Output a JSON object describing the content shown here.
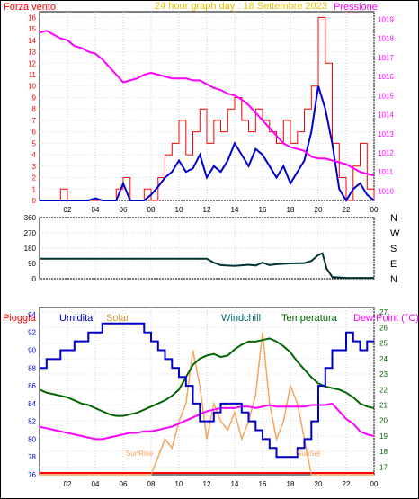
{
  "header": {
    "left_label": "Forza vento",
    "title": "24 hour graph day : 18 Settembre 2023",
    "right_label": "Pressione"
  },
  "colors": {
    "wind": "#ff0000",
    "wind_avg": "#0000cc",
    "pressure": "#ff00ff",
    "direction": "#003333",
    "rain": "#ff0000",
    "humidity": "#0000cc",
    "solar": "#f4a460",
    "windchill": "#006600",
    "temperature": "#006600",
    "dewpoint": "#ff00ff",
    "axis_left": "#ff0000",
    "axis_right": "#ff00ff",
    "title": "#e6c200"
  },
  "hour_ticks": [
    "02",
    "04",
    "06",
    "08",
    "10",
    "12",
    "14",
    "16",
    "18",
    "20",
    "22",
    "00"
  ],
  "chart_data": [
    {
      "type": "line",
      "name": "wind-pressure",
      "x_range": [
        0,
        24
      ],
      "left_axis": {
        "label": "Forza vento",
        "ylim": [
          0,
          16.5
        ],
        "ticks": [
          0,
          1,
          2,
          3,
          4,
          5,
          6,
          7,
          8,
          9,
          10,
          11,
          12,
          13,
          14,
          15,
          16
        ]
      },
      "right_axis": {
        "label": "Pressione",
        "ylim": [
          1009.5,
          1019.4
        ],
        "ticks": [
          1010,
          1011,
          1012,
          1013,
          1014,
          1015,
          1016,
          1017,
          1018,
          1019
        ]
      },
      "series": [
        {
          "axis": "right",
          "x": [
            0,
            0.5,
            1,
            1.5,
            2,
            2.5,
            3,
            3.5,
            4,
            4.5,
            5,
            5.5,
            6,
            6.5,
            7,
            7.5,
            8,
            8.5,
            9,
            9.5,
            10,
            10.5,
            11,
            11.5,
            12,
            12.5,
            13,
            13.5,
            14,
            14.5,
            15,
            15.5,
            16,
            16.5,
            17,
            17.5,
            18,
            18.5,
            19,
            19.5,
            20,
            20.5,
            21,
            21.5,
            22,
            22.5,
            23,
            23.5,
            24
          ],
          "y": [
            1018.3,
            1018.4,
            1018.2,
            1018.0,
            1017.9,
            1017.6,
            1017.5,
            1017.3,
            1017.2,
            1016.9,
            1016.5,
            1016.1,
            1015.7,
            1015.8,
            1015.9,
            1016.1,
            1016.2,
            1016.1,
            1016.0,
            1015.9,
            1015.9,
            1015.9,
            1015.8,
            1015.8,
            1015.6,
            1015.4,
            1015.3,
            1015.1,
            1015.0,
            1014.8,
            1014.5,
            1014.1,
            1013.7,
            1013.3,
            1012.9,
            1012.5,
            1012.3,
            1012.2,
            1012.1,
            1011.8,
            1011.7,
            1011.7,
            1011.6,
            1011.5,
            1011.4,
            1011.2,
            1011.0,
            1010.9,
            1010.8
          ]
        },
        {
          "axis": "left",
          "x": [
            0,
            0.5,
            1,
            1.5,
            2,
            2.5,
            3,
            3.5,
            4,
            4.5,
            5,
            5.5,
            6,
            6.5,
            7,
            7.5,
            8,
            8.5,
            9,
            9.5,
            10,
            10.5,
            11,
            11.5,
            12,
            12.5,
            13,
            13.5,
            14,
            14.5,
            15,
            15.5,
            16,
            16.5,
            17,
            17.5,
            18,
            18.5,
            19,
            19.5,
            20,
            20.5,
            21,
            21.5,
            22,
            22.5,
            23,
            23.5,
            24
          ],
          "y": [
            0,
            0,
            0,
            1,
            0,
            0,
            0,
            0,
            0,
            0,
            0,
            1,
            2,
            0,
            0,
            1,
            0,
            2,
            4,
            5,
            7,
            4,
            6,
            8,
            5,
            7,
            6,
            8,
            9,
            7,
            6,
            8,
            7,
            6,
            5,
            7,
            5,
            6,
            8,
            10,
            16,
            12,
            5,
            2,
            0,
            3,
            5,
            1,
            0
          ]
        },
        {
          "axis": "left",
          "x": [
            0,
            0.5,
            1,
            1.5,
            2,
            2.5,
            3,
            3.5,
            4,
            4.5,
            5,
            5.5,
            6,
            6.5,
            7,
            7.5,
            8,
            8.5,
            9,
            9.5,
            10,
            10.5,
            11,
            11.5,
            12,
            12.5,
            13,
            13.5,
            14,
            14.5,
            15,
            15.5,
            16,
            16.5,
            17,
            17.5,
            18,
            18.5,
            19,
            19.5,
            20,
            20.5,
            21,
            21.5,
            22,
            22.5,
            23,
            23.5,
            24
          ],
          "y": [
            0,
            0,
            0,
            0,
            0,
            0,
            0,
            0,
            0.2,
            0,
            0,
            0,
            1.5,
            0,
            0,
            0,
            0.5,
            1.2,
            2.0,
            2.5,
            3.5,
            2.5,
            2.8,
            4.0,
            2.0,
            3.0,
            2.5,
            3.5,
            5.0,
            4.0,
            3.0,
            4.5,
            4.0,
            3.0,
            2.0,
            3.0,
            1.5,
            2.5,
            3.5,
            6.0,
            10.0,
            8.0,
            5.0,
            1.0,
            0,
            1.0,
            1.5,
            0.5,
            0
          ]
        }
      ]
    },
    {
      "type": "line",
      "name": "wind-direction",
      "x_range": [
        0,
        24
      ],
      "left_axis": {
        "ylim": [
          0,
          360
        ],
        "ticks": [
          0,
          90,
          180,
          270,
          360
        ]
      },
      "right_labels": [
        "N",
        "W",
        "S",
        "E",
        "N"
      ],
      "series": [
        {
          "x": [
            0,
            2,
            4,
            6,
            8,
            9,
            10,
            11,
            12,
            12.5,
            13,
            14,
            15,
            15.5,
            16,
            16.5,
            17,
            18,
            19,
            19.5,
            20,
            20.3,
            20.6,
            21,
            22,
            24
          ],
          "y": [
            118,
            118,
            118,
            118,
            118,
            118,
            118,
            118,
            118,
            95,
            80,
            75,
            82,
            78,
            95,
            80,
            85,
            90,
            92,
            105,
            140,
            150,
            60,
            10,
            5,
            5
          ]
        }
      ]
    },
    {
      "type": "line",
      "name": "environment",
      "legend": [
        "Pioggia",
        "Umidita",
        "Solar",
        "Windchill",
        "Temperatura",
        "Dew Point (°C)"
      ],
      "x_range": [
        0,
        24
      ],
      "left_axis": {
        "ylim": [
          76,
          94.8
        ],
        "ticks": [
          76,
          78,
          80,
          82,
          84,
          86,
          88,
          90,
          92,
          94
        ]
      },
      "right_axis": {
        "ylim": [
          16.5,
          27.3
        ],
        "ticks": [
          17,
          18,
          19,
          20,
          21,
          22,
          23,
          24,
          25,
          26,
          27
        ]
      },
      "annotations": [
        "SunRise",
        "SunSet"
      ],
      "series": [
        {
          "name": "Umidita",
          "axis": "left",
          "x": [
            0,
            0.5,
            1,
            1.5,
            2,
            2.5,
            3,
            3.5,
            4,
            4.5,
            5,
            5.5,
            6,
            6.5,
            7,
            7.5,
            8,
            8.5,
            9,
            9.5,
            10,
            10.5,
            11,
            11.5,
            12,
            12.5,
            13,
            13.5,
            14,
            14.5,
            15,
            15.5,
            16,
            16.5,
            17,
            17.5,
            18,
            18.5,
            19,
            19.5,
            20,
            20.5,
            21,
            21.5,
            22,
            22.5,
            23,
            23.5,
            24
          ],
          "y": [
            88,
            89,
            89,
            90,
            90,
            91,
            91,
            92,
            92,
            93,
            93,
            93,
            93,
            93,
            93,
            92,
            91,
            90,
            89,
            88,
            87,
            86,
            84,
            82,
            82,
            83,
            84,
            84,
            84,
            83,
            82,
            81,
            80,
            79,
            78,
            78,
            78,
            79,
            80,
            82,
            86,
            88,
            90,
            90,
            92,
            91,
            90,
            91,
            91
          ]
        },
        {
          "name": "Solar",
          "axis": "left",
          "x": [
            0,
            0.5,
            1,
            1.5,
            2,
            2.5,
            3,
            3.5,
            4,
            4.5,
            5,
            5.5,
            6,
            6.5,
            7,
            7.5,
            8,
            8.5,
            9,
            9.5,
            10,
            10.5,
            11,
            11.5,
            12,
            12.5,
            13,
            13.5,
            14,
            14.5,
            15,
            15.5,
            16,
            16.5,
            17,
            17.5,
            18,
            18.5,
            19,
            19.5,
            20,
            20.5,
            21,
            21.5,
            22,
            22.5,
            23,
            23.5,
            24
          ],
          "y": [
            76,
            76,
            76,
            76,
            76,
            76,
            76,
            76,
            76,
            76,
            76,
            76,
            76,
            76,
            76,
            76,
            76,
            78,
            80,
            79,
            82,
            84,
            90,
            86,
            80,
            84,
            82,
            81,
            83,
            80,
            82,
            85,
            92,
            84,
            80,
            82,
            86,
            84,
            80,
            76,
            76,
            76,
            76,
            76,
            76,
            76,
            76,
            76,
            76
          ]
        },
        {
          "name": "Temperatura",
          "axis": "right",
          "x": [
            0,
            0.5,
            1,
            1.5,
            2,
            2.5,
            3,
            3.5,
            4,
            4.5,
            5,
            5.5,
            6,
            6.5,
            7,
            7.5,
            8,
            8.5,
            9,
            9.5,
            10,
            10.5,
            11,
            11.5,
            12,
            12.5,
            13,
            13.5,
            14,
            14.5,
            15,
            15.5,
            16,
            16.5,
            17,
            17.5,
            18,
            18.5,
            19,
            19.5,
            20,
            20.5,
            21,
            21.5,
            22,
            22.5,
            23,
            23.5,
            24
          ],
          "y": [
            22.0,
            21.8,
            21.7,
            21.6,
            21.5,
            21.3,
            21.1,
            21.0,
            20.8,
            20.6,
            20.4,
            20.3,
            20.3,
            20.4,
            20.5,
            20.7,
            20.9,
            21.1,
            21.3,
            21.6,
            22.0,
            22.8,
            23.6,
            24.0,
            24.2,
            24.3,
            24.1,
            24.2,
            24.6,
            24.9,
            25.1,
            25.1,
            25.2,
            25.3,
            25.1,
            24.8,
            24.4,
            23.8,
            23.3,
            22.8,
            22.4,
            22.2,
            22.1,
            22.0,
            21.8,
            21.5,
            21.1,
            20.9,
            20.8
          ]
        },
        {
          "name": "Dew Point (°C)",
          "axis": "right",
          "x": [
            0,
            0.5,
            1,
            1.5,
            2,
            2.5,
            3,
            3.5,
            4,
            4.5,
            5,
            5.5,
            6,
            6.5,
            7,
            7.5,
            8,
            8.5,
            9,
            9.5,
            10,
            10.5,
            11,
            11.5,
            12,
            12.5,
            13,
            13.5,
            14,
            14.5,
            15,
            15.5,
            16,
            16.5,
            17,
            17.5,
            18,
            18.5,
            19,
            19.5,
            20,
            20.5,
            21,
            21.5,
            22,
            22.5,
            23,
            23.5,
            24
          ],
          "y": [
            19.6,
            19.5,
            19.4,
            19.3,
            19.2,
            19.1,
            19.0,
            18.9,
            18.8,
            18.8,
            18.9,
            19.0,
            19.1,
            19.2,
            19.2,
            19.3,
            19.3,
            19.4,
            19.5,
            19.6,
            19.8,
            20.0,
            20.2,
            20.4,
            20.6,
            20.7,
            20.8,
            20.8,
            20.8,
            20.9,
            20.9,
            20.8,
            20.9,
            21.0,
            20.9,
            20.9,
            20.9,
            20.9,
            20.9,
            21.0,
            21.0,
            21.0,
            21.1,
            20.6,
            20.1,
            19.8,
            19.3,
            19.1,
            19.0
          ]
        }
      ]
    }
  ]
}
